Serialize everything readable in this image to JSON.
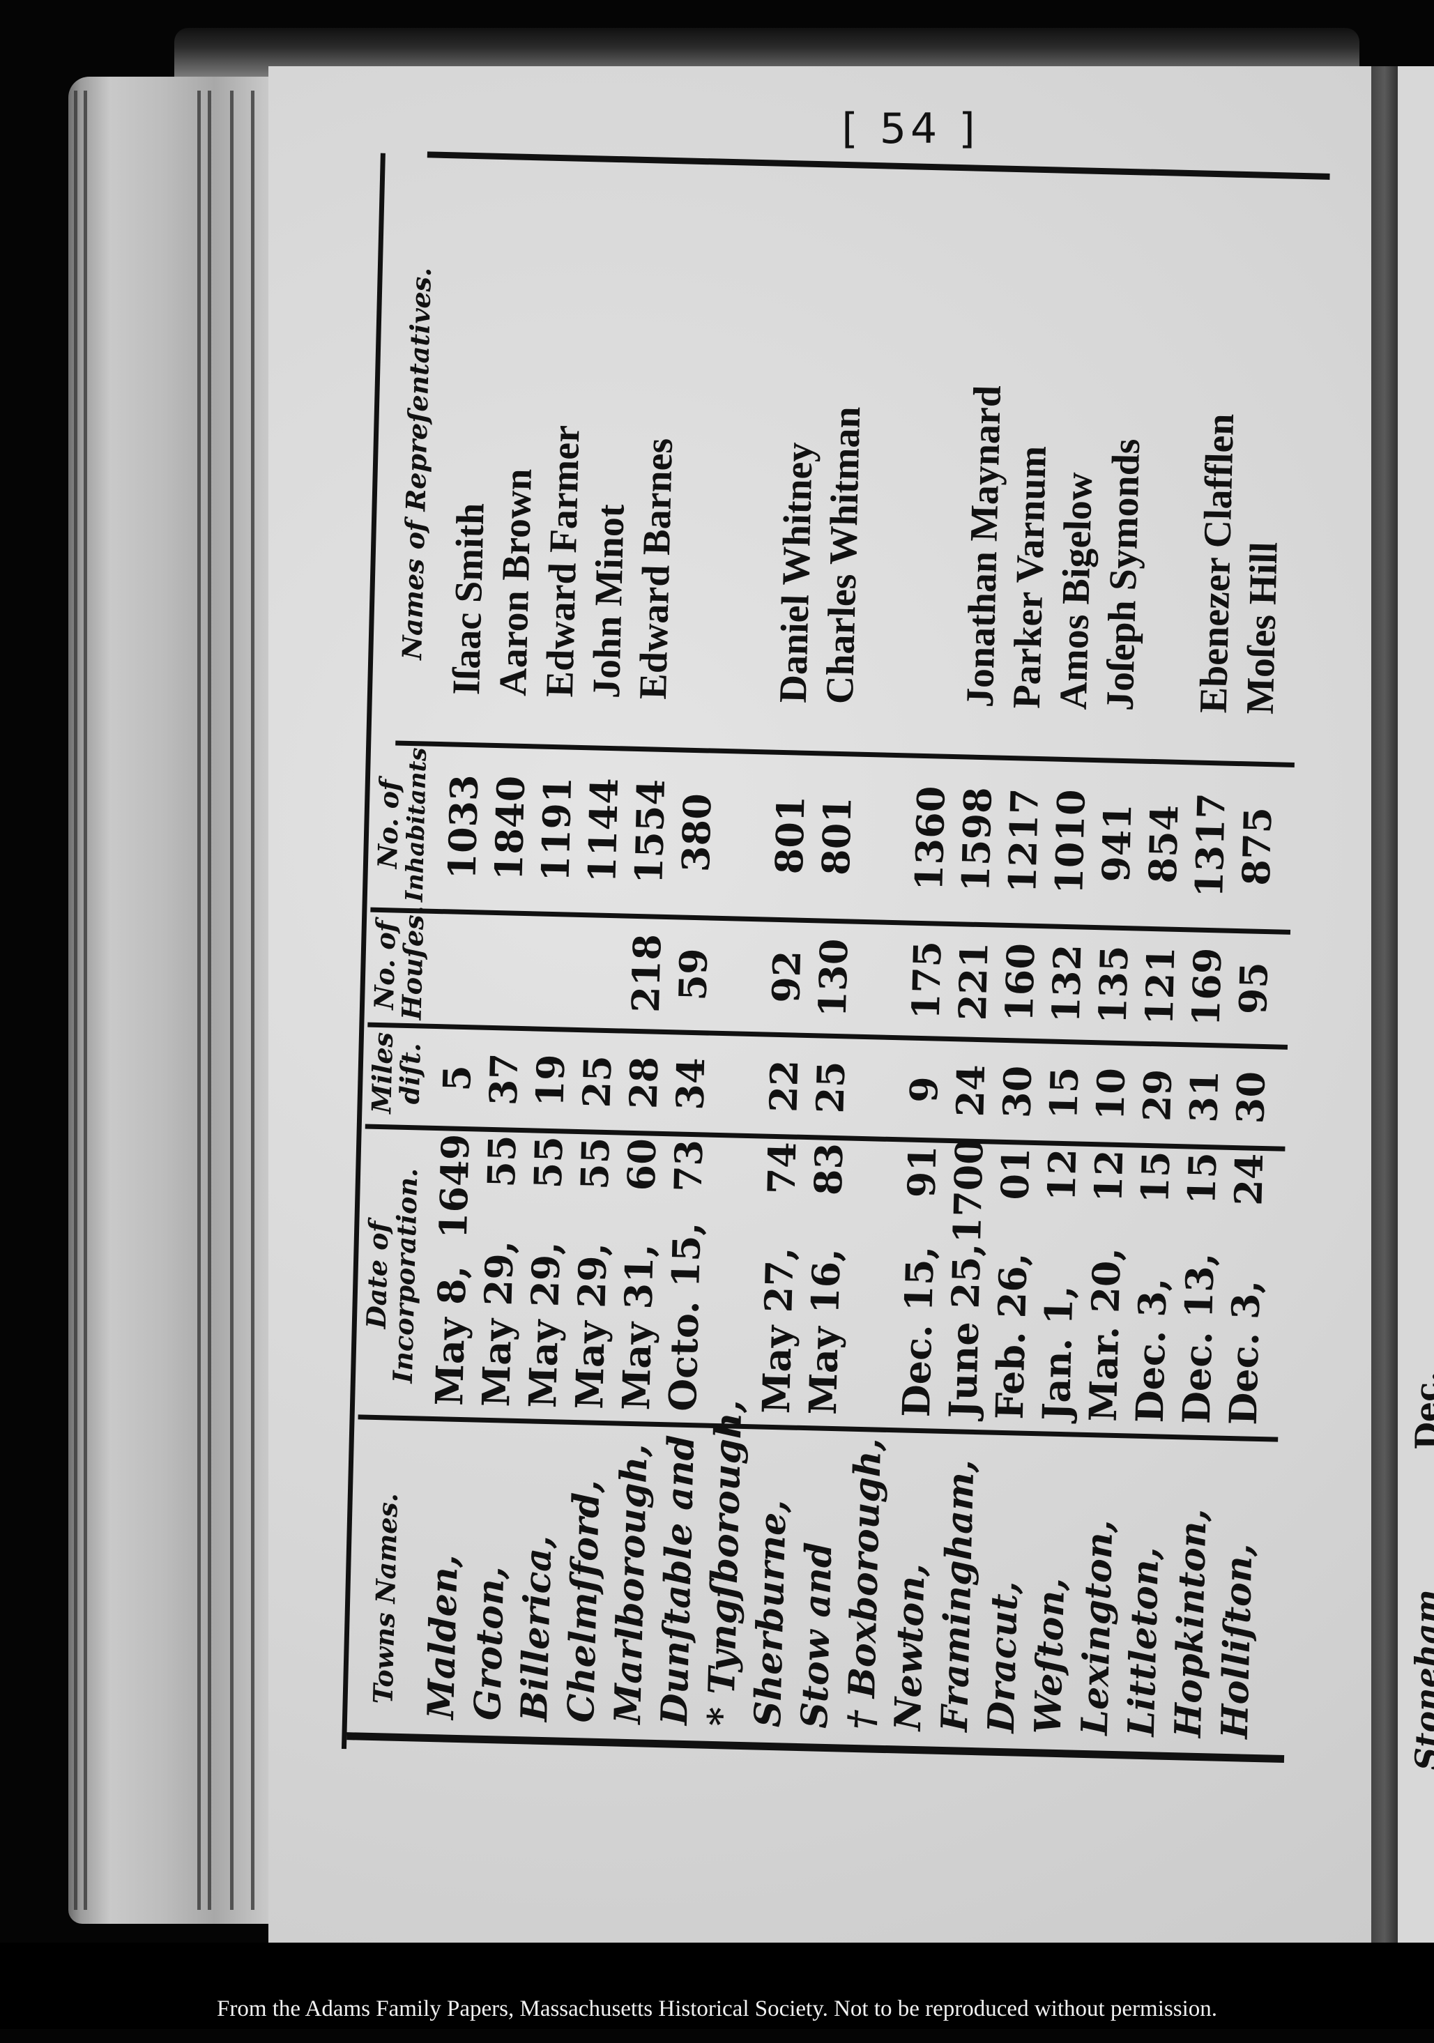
{
  "page_number": "[ 54 ]",
  "headers": {
    "towns": "Towns Names.",
    "date": [
      "Date of",
      "Incorporation."
    ],
    "miles": [
      "Miles",
      "diſt."
    ],
    "houses": [
      "No. of",
      "Houſes."
    ],
    "inhabitants": [
      "No. of",
      "Inhabitants"
    ],
    "representatives": "Names of Repreſentatives."
  },
  "rows": [
    {
      "town": "Malden,",
      "date": "May 8,",
      "year": "1649",
      "miles": "5",
      "houses": "",
      "inhabitants": "1033",
      "representative": "Iſaac Smith"
    },
    {
      "town": "Groton,",
      "date": "May 29,",
      "year": "55",
      "miles": "37",
      "houses": "",
      "inhabitants": "1840",
      "representative": "Aaron Brown"
    },
    {
      "town": "Billerica,",
      "date": "May 29,",
      "year": "55",
      "miles": "19",
      "houses": "",
      "inhabitants": "1191",
      "representative": "Edward Farmer"
    },
    {
      "town": "Chelmſford,",
      "date": "May 29,",
      "year": "55",
      "miles": "25",
      "houses": "",
      "inhabitants": "1144",
      "representative": "John Minot"
    },
    {
      "town": "Marlborough,",
      "date": "May 31,",
      "year": "60",
      "miles": "28",
      "houses": "218",
      "inhabitants": "1554",
      "representative": "Edward Barnes"
    },
    {
      "town": "Dunſtable and",
      "date": "Octo. 15,",
      "year": "73",
      "miles": "34",
      "houses": "59",
      "inhabitants": "380",
      "representative": ""
    },
    {
      "town": "* Tyngſborough,",
      "date": "",
      "year": "",
      "miles": "",
      "houses": "",
      "inhabitants": "",
      "representative": ""
    },
    {
      "town": "Sherburne,",
      "date": "May 27,",
      "year": "74",
      "miles": "22",
      "houses": "92",
      "inhabitants": "801",
      "representative": "Daniel Whitney"
    },
    {
      "town": "Stow and",
      "date": "May 16,",
      "year": "83",
      "miles": "25",
      "houses": "130",
      "inhabitants": "801",
      "representative": "Charles Whitman"
    },
    {
      "town": "† Boxborough,",
      "date": "",
      "year": "",
      "miles": "",
      "houses": "",
      "inhabitants": "",
      "representative": ""
    },
    {
      "town": "Newton,",
      "date": "Dec. 15,",
      "year": "91",
      "miles": "9",
      "houses": "175",
      "inhabitants": "1360",
      "representative": ""
    },
    {
      "town": "Framingham,",
      "date": "June 25,",
      "year": "1700",
      "miles": "24",
      "houses": "221",
      "inhabitants": "1598",
      "representative": "Jonathan Maynard"
    },
    {
      "town": "Dracut,",
      "date": "Feb. 26,",
      "year": "01",
      "miles": "30",
      "houses": "160",
      "inhabitants": "1217",
      "representative": "Parker Varnum"
    },
    {
      "town": "Weſton,",
      "date": "Jan. 1,",
      "year": "12",
      "miles": "15",
      "houses": "132",
      "inhabitants": "1010",
      "representative": "Amos Bigelow"
    },
    {
      "town": "Lexington,",
      "date": "Mar. 20,",
      "year": "12",
      "miles": "10",
      "houses": "135",
      "inhabitants": "941",
      "representative": "Joſeph Symonds"
    },
    {
      "town": "Littleton,",
      "date": "Dec. 3,",
      "year": "15",
      "miles": "29",
      "houses": "121",
      "inhabitants": "854",
      "representative": ""
    },
    {
      "town": "Hopkinton,",
      "date": "Dec. 13,",
      "year": "15",
      "miles": "31",
      "houses": "169",
      "inhabitants": "1317",
      "representative": "Ebenezer Clafflen"
    },
    {
      "town": "Holliſton,",
      "date": "Dec. 3,",
      "year": "24",
      "miles": "30",
      "houses": "95",
      "inhabitants": "875",
      "representative": "Moſes Hill"
    }
  ],
  "facing_page_fragments": [
    "Stoneham",
    "Dec."
  ],
  "footer": "From the Adams Family Papers, Massachusetts Historical Society. Not to be reproduced without permission."
}
